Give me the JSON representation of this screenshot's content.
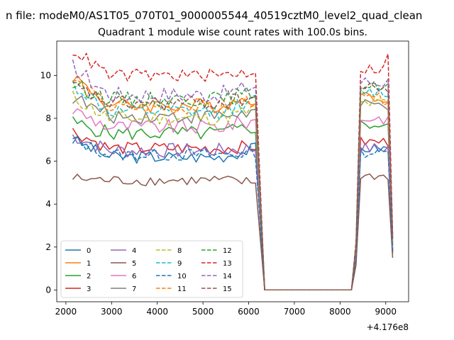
{
  "figure": {
    "suptitle": "n file: modeM0/AS1T05_070T01_9000005544_40519cztM0_level2_quad_clean",
    "title": "Quadrant 1 module wise count rates with 100.0s bins.",
    "x_offset_label": "+4.176e8"
  },
  "chart_data": {
    "type": "line",
    "title": "Quadrant 1 module wise count rates with 100.0s bins.",
    "xlabel": "",
    "ylabel": "",
    "xlim": [
      1800,
      9500
    ],
    "ylim": [
      -0.55,
      11.6
    ],
    "xticks": [
      2000,
      3000,
      4000,
      5000,
      6000,
      7000,
      8000,
      9000
    ],
    "xtick_labels": [
      "2000",
      "3000",
      "4000",
      "5000",
      "6000",
      "7000",
      "8000",
      "9000"
    ],
    "yticks": [
      0,
      2,
      4,
      6,
      8,
      10
    ],
    "ytick_labels": [
      "0",
      "2",
      "4",
      "6",
      "8",
      "10"
    ],
    "x_offset": 417600000,
    "grid": false,
    "legend": "lower-left, 4 columns",
    "x": [
      2150,
      2250,
      2350,
      2450,
      2550,
      2650,
      2750,
      2850,
      2950,
      3050,
      3150,
      3250,
      3350,
      3450,
      3550,
      3650,
      3750,
      3850,
      3950,
      4050,
      4150,
      4250,
      4350,
      4450,
      4550,
      4650,
      4750,
      4850,
      4950,
      5050,
      5150,
      5250,
      5350,
      5450,
      5550,
      5650,
      5750,
      5850,
      5950,
      6050,
      6150,
      6250,
      6350,
      6450,
      6550,
      6650,
      6750,
      6850,
      6950,
      7050,
      7150,
      7250,
      7350,
      7450,
      7550,
      7650,
      7750,
      7850,
      7950,
      8050,
      8150,
      8250,
      8350,
      8450,
      8550,
      8650,
      8750,
      8850,
      8950,
      9050,
      9150
    ],
    "series_summary": {
      "on_intervals": [
        [
          2150,
          6150
        ],
        [
          8450,
          9050
        ]
      ],
      "off_interval_value": 0,
      "pre_gap_points": [
        [
          6250,
          4.5
        ],
        [
          6350,
          0
        ]
      ],
      "post_gap_points": [
        [
          8250,
          0
        ],
        [
          8350,
          2.0
        ]
      ],
      "end_point": [
        9150,
        2.0
      ]
    },
    "series": [
      {
        "name": "0",
        "color": "#1f77b4",
        "dash": "solid",
        "level": 6.2,
        "start": 7.0,
        "late": 6.6,
        "after_gap": 6.6,
        "end": 1.8,
        "amp": 0.3
      },
      {
        "name": "1",
        "color": "#ff7f0e",
        "dash": "solid",
        "level": 8.6,
        "start": 10.0,
        "late": 9.0,
        "after_gap": 9.0,
        "end": 2.2,
        "amp": 0.35
      },
      {
        "name": "2",
        "color": "#2ca02c",
        "dash": "solid",
        "level": 7.3,
        "start": 7.8,
        "late": 7.6,
        "after_gap": 7.7,
        "end": 1.9,
        "amp": 0.35
      },
      {
        "name": "3",
        "color": "#d62728",
        "dash": "solid",
        "level": 6.6,
        "start": 7.4,
        "late": 6.7,
        "after_gap": 6.9,
        "end": 1.7,
        "amp": 0.3
      },
      {
        "name": "4",
        "color": "#9467bd",
        "dash": "solid",
        "level": 6.5,
        "start": 7.2,
        "late": 6.6,
        "after_gap": 6.6,
        "end": 1.8,
        "amp": 0.35
      },
      {
        "name": "5",
        "color": "#8c564b",
        "dash": "solid",
        "level": 5.1,
        "start": 5.2,
        "late": 5.0,
        "after_gap": 5.3,
        "end": 1.5,
        "amp": 0.25
      },
      {
        "name": "6",
        "color": "#e377c2",
        "dash": "solid",
        "level": 7.6,
        "start": 8.4,
        "late": 7.9,
        "after_gap": 8.0,
        "end": 2.0,
        "amp": 0.35
      },
      {
        "name": "7",
        "color": "#7f7f7f",
        "dash": "solid",
        "level": 8.1,
        "start": 9.0,
        "late": 8.3,
        "after_gap": 8.6,
        "end": 2.1,
        "amp": 0.35
      },
      {
        "name": "8",
        "color": "#bcbd22",
        "dash": "dashed",
        "level": 8.0,
        "start": 9.0,
        "late": 8.4,
        "after_gap": 8.7,
        "end": 2.2,
        "amp": 0.35
      },
      {
        "name": "9",
        "color": "#17becf",
        "dash": "dashed",
        "level": 8.3,
        "start": 9.6,
        "late": 8.8,
        "after_gap": 9.2,
        "end": 2.3,
        "amp": 0.35
      },
      {
        "name": "10",
        "color": "#1f77b4",
        "dash": "dashed",
        "level": 6.3,
        "start": 7.0,
        "late": 6.4,
        "after_gap": 6.4,
        "end": 1.8,
        "amp": 0.3
      },
      {
        "name": "11",
        "color": "#ff7f0e",
        "dash": "dashed",
        "level": 8.5,
        "start": 9.8,
        "late": 8.9,
        "after_gap": 8.9,
        "end": 2.3,
        "amp": 0.35
      },
      {
        "name": "12",
        "color": "#2ca02c",
        "dash": "dashed",
        "level": 8.9,
        "start": 9.6,
        "late": 9.2,
        "after_gap": 9.5,
        "end": 2.4,
        "amp": 0.35
      },
      {
        "name": "13",
        "color": "#d62728",
        "dash": "dashed",
        "level": 10.0,
        "start": 11.2,
        "late": 10.2,
        "after_gap": 10.3,
        "end": 2.6,
        "amp": 0.3
      },
      {
        "name": "14",
        "color": "#9467bd",
        "dash": "dashed",
        "level": 9.1,
        "start": 10.4,
        "late": 9.5,
        "after_gap": 9.7,
        "end": 2.4,
        "amp": 0.4
      },
      {
        "name": "15",
        "color": "#8c564b",
        "dash": "dashed",
        "level": 8.7,
        "start": 9.5,
        "late": 9.0,
        "after_gap": 9.4,
        "end": 2.3,
        "amp": 0.35
      }
    ]
  }
}
